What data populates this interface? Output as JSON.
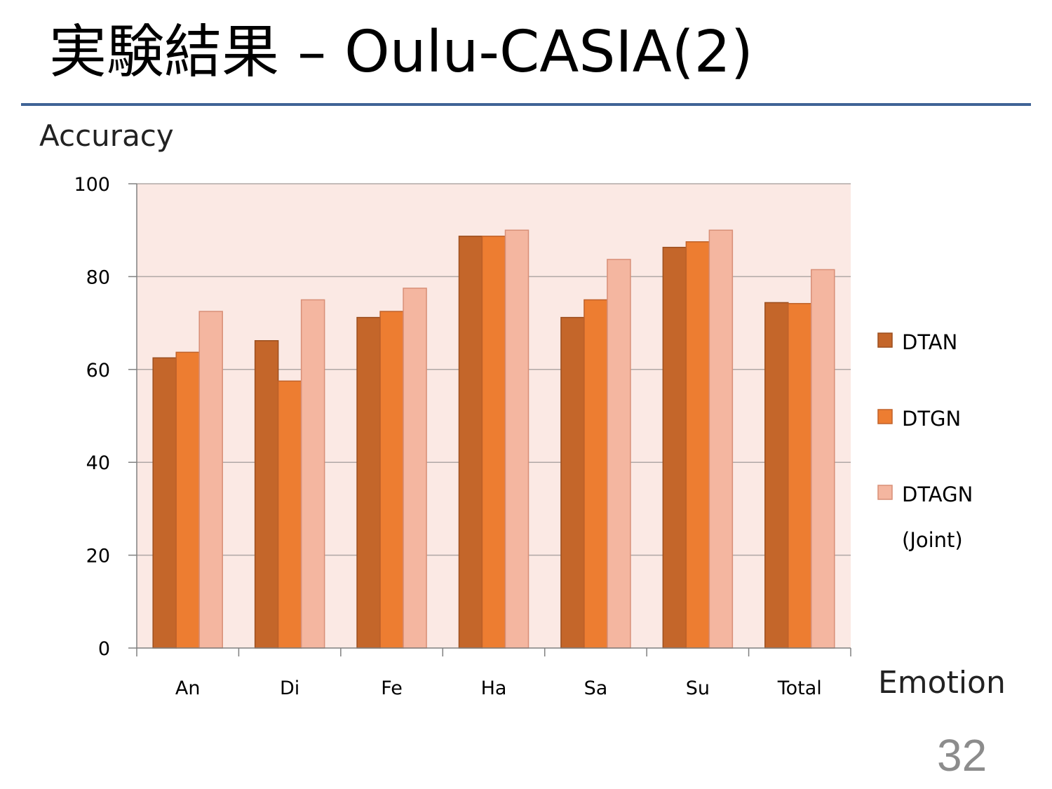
{
  "slide": {
    "title": "実験結果 – Oulu-CASIA(2)",
    "page_number": "32"
  },
  "colors": {
    "title_rule": "#3f6396",
    "plot_background": "#fbe9e4",
    "gridline": "#b0a8a6",
    "series": [
      "#c4662a",
      "#ed7d31",
      "#f4b6a0"
    ],
    "series_stroke": [
      "#9c4f1f",
      "#c0622a",
      "#d88f77"
    ]
  },
  "chart_data": {
    "type": "bar",
    "ylabel": "Accuracy",
    "xlabel": "Emotion",
    "ylim": [
      0,
      100
    ],
    "yticks": [
      0,
      20,
      40,
      60,
      80,
      100
    ],
    "grid": true,
    "legend_position": "right",
    "categories": [
      "An",
      "Di",
      "Fe",
      "Ha",
      "Sa",
      "Su",
      "Total"
    ],
    "series": [
      {
        "name": "DTAN",
        "values": [
          62.5,
          66.2,
          71.2,
          88.7,
          71.2,
          86.3,
          74.4
        ]
      },
      {
        "name": "DTGN",
        "values": [
          63.7,
          57.5,
          72.5,
          88.7,
          75.0,
          87.5,
          74.2
        ]
      },
      {
        "name": "DTAGN",
        "name_line2": "(Joint)",
        "values": [
          72.5,
          75.0,
          77.5,
          90.0,
          83.7,
          90.0,
          81.5
        ]
      }
    ]
  }
}
